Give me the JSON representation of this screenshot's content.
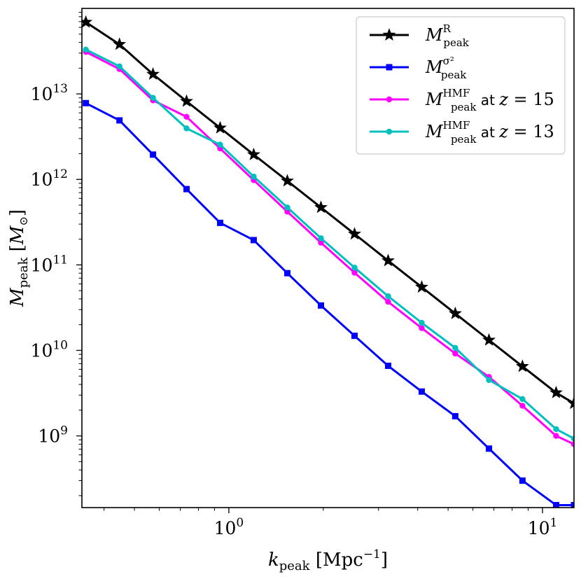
{
  "chart_data": {
    "type": "line",
    "x_scale": "log",
    "y_scale": "log",
    "xlim": [
      0.34,
      12.6
    ],
    "ylim": [
      145000000.0,
      100000000000000.0
    ],
    "xlabel": {
      "base": "k",
      "sub": "peak",
      "unit_pre": " [Mpc",
      "unit_exp": "−1",
      "unit_post": "]"
    },
    "ylabel": {
      "base": "M",
      "sub": "peak",
      "unit_pre": " [",
      "unit_var": "M",
      "unit_sub": "⊙",
      "unit_post": "]"
    },
    "x_ticks": [
      {
        "value": 1,
        "base": "10",
        "exp": "0"
      },
      {
        "value": 10,
        "base": "10",
        "exp": "1"
      }
    ],
    "y_ticks": [
      {
        "value": 1000000000.0,
        "base": "10",
        "exp": "9"
      },
      {
        "value": 10000000000.0,
        "base": "10",
        "exp": "10"
      },
      {
        "value": 100000000000.0,
        "base": "10",
        "exp": "11"
      },
      {
        "value": 1000000000000.0,
        "base": "10",
        "exp": "12"
      },
      {
        "value": 10000000000000.0,
        "base": "10",
        "exp": "13"
      }
    ],
    "legend_position": "top-right",
    "series": [
      {
        "name": "M_peak^R",
        "label": {
          "base": "M",
          "sub": "peak",
          "sup": "R",
          "suffix_text": "",
          "suffix_var": "",
          "suffix_eq": ""
        },
        "color": "#000000",
        "marker": "star",
        "x": [
          0.35,
          0.448,
          0.573,
          0.733,
          0.938,
          1.2,
          1.536,
          1.966,
          2.516,
          3.219,
          4.12,
          5.27,
          6.75,
          8.63,
          11.05,
          12.6
        ],
        "y": [
          69000000000000.0,
          38000000000000.0,
          17000000000000.0,
          8200000000000.0,
          4000000000000.0,
          1950000000000.0,
          960000000000.0,
          470000000000.0,
          230000000000.0,
          112000000000.0,
          55000000000.0,
          27000000000.0,
          13200000000.0,
          6500000000.0,
          3200000000.0,
          2400000000.0
        ]
      },
      {
        "name": "M_peak^sigma2",
        "label": {
          "base": "M",
          "sub": "peak",
          "sup": "σ²",
          "suffix_text": "",
          "suffix_var": "",
          "suffix_eq": ""
        },
        "color": "#0000ff",
        "marker": "square",
        "x": [
          0.35,
          0.448,
          0.573,
          0.733,
          0.938,
          1.2,
          1.536,
          1.966,
          2.516,
          3.219,
          4.12,
          5.27,
          6.75,
          8.63,
          11.05,
          12.6
        ],
        "y": [
          7800000000000.0,
          4900000000000.0,
          1950000000000.0,
          770000000000.0,
          310000000000.0,
          195000000000.0,
          80000000000.0,
          33500000000.0,
          14800000000.0,
          6600000000.0,
          3300000000.0,
          1700000000.0,
          710000000.0,
          300000000.0,
          155000000.0,
          155000000.0
        ]
      },
      {
        "name": "M_peak^HMF at z = 15",
        "label": {
          "base": "M",
          "sub": "peak",
          "sup": "HMF",
          "suffix_text": " at ",
          "suffix_var": "z",
          "suffix_eq": " = 15"
        },
        "color": "#ff00ff",
        "marker": "circle",
        "x": [
          0.35,
          0.448,
          0.573,
          0.733,
          0.938,
          1.2,
          1.536,
          1.966,
          2.516,
          3.219,
          4.12,
          5.27,
          6.75,
          8.63,
          11.05,
          12.6
        ],
        "y": [
          31000000000000.0,
          19500000000000.0,
          8400000000000.0,
          5400000000000.0,
          2300000000000.0,
          980000000000.0,
          420000000000.0,
          182000000000.0,
          81000000000.0,
          37000000000.0,
          18200000000.0,
          9200000000.0,
          4900000000.0,
          2250000000.0,
          1000000000.0,
          800000000.0
        ]
      },
      {
        "name": "M_peak^HMF at z = 13",
        "label": {
          "base": "M",
          "sub": "peak",
          "sup": "HMF",
          "suffix_text": " at ",
          "suffix_var": "z",
          "suffix_eq": " = 13"
        },
        "color": "#00bfbf",
        "marker": "circle",
        "x": [
          0.35,
          0.448,
          0.573,
          0.733,
          0.938,
          1.2,
          1.536,
          1.966,
          2.516,
          3.219,
          4.12,
          5.27,
          6.75,
          8.63,
          11.05,
          12.6
        ],
        "y": [
          33000000000000.0,
          21000000000000.0,
          9000000000000.0,
          3950000000000.0,
          2550000000000.0,
          1080000000000.0,
          470000000000.0,
          205000000000.0,
          93000000000.0,
          43000000000.0,
          21000000000.0,
          10700000000.0,
          4500000000.0,
          2700000000.0,
          1200000000.0,
          930000000.0
        ]
      }
    ]
  }
}
